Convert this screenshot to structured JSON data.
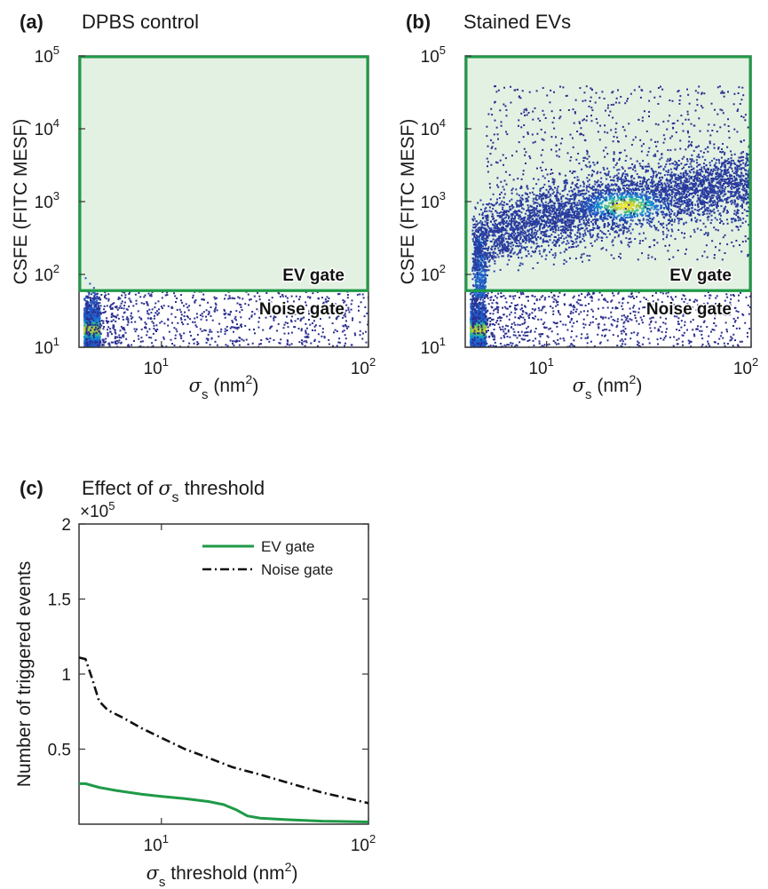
{
  "colors": {
    "ev_gate_line": "#1f9a48",
    "ev_gate_fill": "#e3f1e3",
    "noise_gate_line": "#222222",
    "scatter_low": "#2b2f8f",
    "scatter_high": "#f4e81c",
    "axes": "#333333"
  },
  "chart_data": [
    {
      "type": "scatter",
      "panel": "(a)",
      "title": "DPBS control",
      "xlabel_symbol": "σ",
      "xlabel_sub": "s",
      "xlabel_rest": " (nm",
      "xlabel_sup": "2",
      "xlabel_end": ")",
      "ylabel": "CSFE (FITC MESF)",
      "xscale": "log",
      "yscale": "log",
      "xlim": [
        4,
        100
      ],
      "ylim": [
        10,
        100000
      ],
      "xticks": [
        {
          "value": 10,
          "base": "10",
          "exp": "1"
        },
        {
          "value": 100,
          "base": "10",
          "exp": "2"
        }
      ],
      "yticks": [
        {
          "value": 10,
          "base": "10",
          "exp": "1"
        },
        {
          "value": 100,
          "base": "10",
          "exp": "2"
        },
        {
          "value": 1000,
          "base": "10",
          "exp": "3"
        },
        {
          "value": 10000,
          "base": "10",
          "exp": "4"
        },
        {
          "value": 100000,
          "base": "10",
          "exp": "5"
        }
      ],
      "gate_threshold": 60,
      "gate_labels": {
        "ev": "EV gate",
        "noise": "Noise gate"
      },
      "density": {
        "noise_cluster": {
          "x_range": [
            4.2,
            5.0
          ],
          "y_peak": 18
        },
        "ev_cluster": null
      }
    },
    {
      "type": "scatter",
      "panel": "(b)",
      "title": "Stained EVs",
      "xlabel_symbol": "σ",
      "xlabel_sub": "s",
      "xlabel_rest": " (nm",
      "xlabel_sup": "2",
      "xlabel_end": ")",
      "ylabel": "CSFE (FITC MESF)",
      "xscale": "log",
      "yscale": "log",
      "xlim": [
        4,
        100
      ],
      "ylim": [
        10,
        100000
      ],
      "xticks": [
        {
          "value": 10,
          "base": "10",
          "exp": "1"
        },
        {
          "value": 100,
          "base": "10",
          "exp": "2"
        }
      ],
      "yticks": [
        {
          "value": 10,
          "base": "10",
          "exp": "1"
        },
        {
          "value": 100,
          "base": "10",
          "exp": "2"
        },
        {
          "value": 1000,
          "base": "10",
          "exp": "3"
        },
        {
          "value": 10000,
          "base": "10",
          "exp": "4"
        },
        {
          "value": 100000,
          "base": "10",
          "exp": "5"
        }
      ],
      "gate_threshold": 60,
      "gate_labels": {
        "ev": "EV gate",
        "noise": "Noise gate"
      },
      "density": {
        "noise_cluster": {
          "x_range": [
            4.2,
            5.0
          ],
          "y_peak": 18
        },
        "ev_cluster": {
          "x_peak": 24,
          "y_peak": 900
        }
      }
    },
    {
      "type": "line",
      "panel": "(c)",
      "title_pre": "Effect of ",
      "title_symbol": "σ",
      "title_sub": "s",
      "title_post": " threshold",
      "xlabel_symbol": "σ",
      "xlabel_sub": "s",
      "xlabel_rest": " threshold (nm",
      "xlabel_sup": "2",
      "xlabel_end": ")",
      "ylabel": "Number of triggered events",
      "y_multiplier": "×10",
      "y_multiplier_exp": "5",
      "xscale": "log",
      "xlim": [
        4,
        100
      ],
      "ylim": [
        0,
        2
      ],
      "xticks": [
        {
          "value": 10,
          "base": "10",
          "exp": "1"
        },
        {
          "value": 100,
          "base": "10",
          "exp": "2"
        }
      ],
      "yticks": [
        {
          "value": 0.5,
          "label": "0.5"
        },
        {
          "value": 1,
          "label": "1"
        },
        {
          "value": 1.5,
          "label": "1.5"
        },
        {
          "value": 2,
          "label": "2"
        }
      ],
      "legend_position": "top-right",
      "series": [
        {
          "name": "EV gate",
          "color": "#1f9a48",
          "dash": "solid",
          "x": [
            4,
            4.3,
            5,
            6,
            8,
            10,
            13,
            17,
            20,
            23,
            26,
            30,
            40,
            60,
            100
          ],
          "y": [
            0.27,
            0.27,
            0.245,
            0.225,
            0.2,
            0.185,
            0.17,
            0.15,
            0.13,
            0.095,
            0.055,
            0.04,
            0.03,
            0.02,
            0.015
          ]
        },
        {
          "name": "Noise gate",
          "color": "#111111",
          "dash": "dashdot",
          "x": [
            4,
            4.3,
            4.6,
            5,
            5.5,
            6.5,
            8,
            10,
            13,
            17,
            22,
            30,
            40,
            60,
            100
          ],
          "y": [
            1.11,
            1.1,
            0.98,
            0.82,
            0.76,
            0.71,
            0.64,
            0.575,
            0.5,
            0.44,
            0.38,
            0.33,
            0.28,
            0.21,
            0.14
          ]
        }
      ]
    }
  ]
}
